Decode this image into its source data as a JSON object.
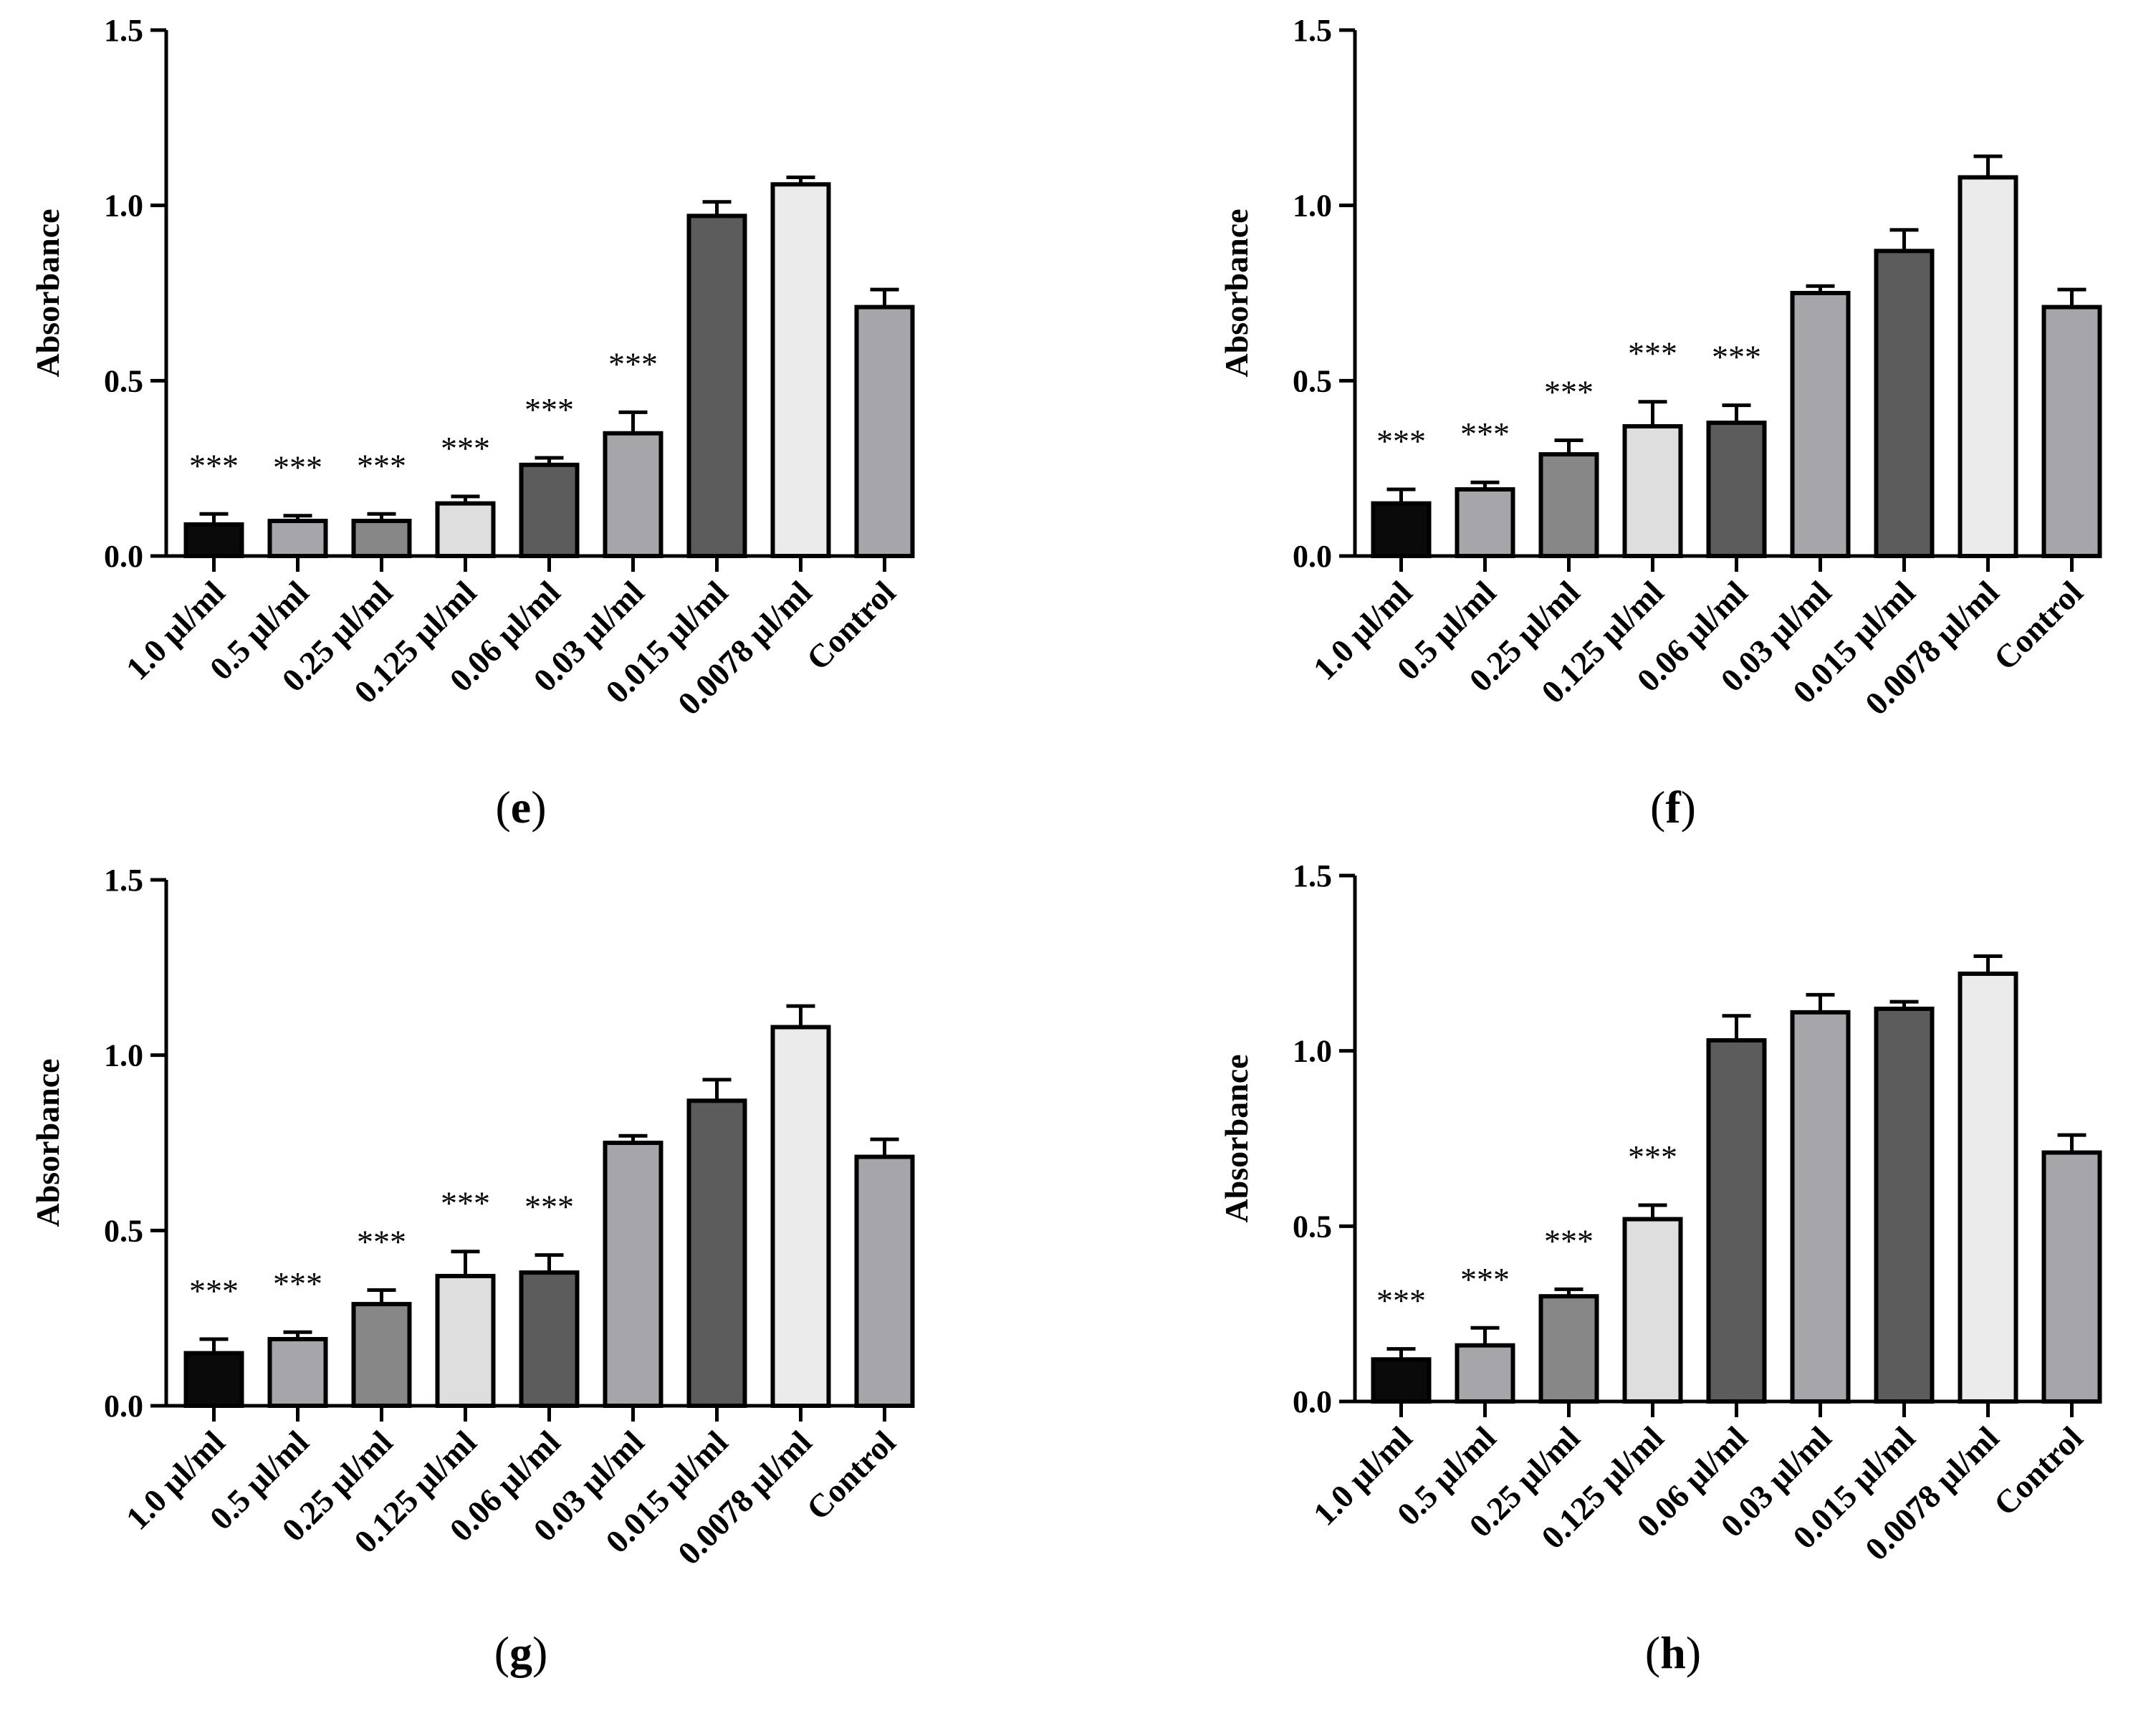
{
  "chart_data": [
    {
      "panel_label": "e",
      "type": "bar",
      "title": "",
      "xlabel": "",
      "ylabel": "Absorbance",
      "ylim": [
        0,
        1.5
      ],
      "yticks": [
        "0.0",
        "0.5",
        "1.0",
        "1.5"
      ],
      "categories": [
        "1.0 µl/ml",
        "0.5 µl/ml",
        "0.25 µl/ml",
        "0.125 µl/ml",
        "0.06 µl/ml",
        "0.03 µl/ml",
        "0.015 µl/ml",
        "0.0078 µl/ml",
        "Control"
      ],
      "values": [
        0.09,
        0.1,
        0.1,
        0.15,
        0.26,
        0.35,
        0.97,
        1.06,
        0.71
      ],
      "errors": [
        0.03,
        0.015,
        0.02,
        0.02,
        0.02,
        0.06,
        0.04,
        0.02,
        0.05
      ],
      "significance": [
        "***",
        "***",
        "***",
        "***",
        "***",
        "***",
        "",
        "",
        ""
      ],
      "bar_colors": [
        "#0a0a0a",
        "#a6a6aa",
        "#878787",
        "#dedede",
        "#5c5c5c",
        "#a6a6aa",
        "#5c5c5c",
        "#ebebeb",
        "#a6a6aa"
      ]
    },
    {
      "panel_label": "f",
      "type": "bar",
      "title": "",
      "xlabel": "",
      "ylabel": "Absorbance",
      "ylim": [
        0,
        1.5
      ],
      "yticks": [
        "0.0",
        "0.5",
        "1.0",
        "1.5"
      ],
      "categories": [
        "1.0 µl/ml",
        "0.5 µl/ml",
        "0.25 µl/ml",
        "0.125 µl/ml",
        "0.06 µl/ml",
        "0.03 µl/ml",
        "0.015 µl/ml",
        "0.0078 µl/ml",
        "Control"
      ],
      "values": [
        0.15,
        0.19,
        0.29,
        0.37,
        0.38,
        0.75,
        0.87,
        1.08,
        0.71
      ],
      "errors": [
        0.04,
        0.02,
        0.04,
        0.07,
        0.05,
        0.02,
        0.06,
        0.06,
        0.05
      ],
      "significance": [
        "***",
        "***",
        "***",
        "***",
        "***",
        "",
        "",
        "",
        ""
      ],
      "bar_colors": [
        "#0a0a0a",
        "#a6a6aa",
        "#878787",
        "#dedede",
        "#5c5c5c",
        "#a6a6aa",
        "#5c5c5c",
        "#ebebeb",
        "#a6a6aa"
      ]
    },
    {
      "panel_label": "g",
      "type": "bar",
      "title": "",
      "xlabel": "",
      "ylabel": "Absorbance",
      "ylim": [
        0,
        1.5
      ],
      "yticks": [
        "0.0",
        "0.5",
        "1.0",
        "1.5"
      ],
      "categories": [
        "1.0 µl/ml",
        "0.5 µl/ml",
        "0.25 µl/ml",
        "0.125 µl/ml",
        "0.06 µl/ml",
        "0.03 µl/ml",
        "0.015 µl/ml",
        "0.0078 µl/ml",
        "Control"
      ],
      "values": [
        0.15,
        0.19,
        0.29,
        0.37,
        0.38,
        0.75,
        0.87,
        1.08,
        0.71
      ],
      "errors": [
        0.04,
        0.02,
        0.04,
        0.07,
        0.05,
        0.02,
        0.06,
        0.06,
        0.05
      ],
      "significance": [
        "***",
        "***",
        "***",
        "***",
        "***",
        "",
        "",
        "",
        ""
      ],
      "bar_colors": [
        "#0a0a0a",
        "#a6a6aa",
        "#878787",
        "#dedede",
        "#5c5c5c",
        "#a6a6aa",
        "#5c5c5c",
        "#ebebeb",
        "#a6a6aa"
      ]
    },
    {
      "panel_label": "h",
      "type": "bar",
      "title": "",
      "xlabel": "",
      "ylabel": "Absorbance",
      "ylim": [
        0,
        1.5
      ],
      "yticks": [
        "0.0",
        "0.5",
        "1.0",
        "1.5"
      ],
      "categories": [
        "1.0 µl/ml",
        "0.5 µl/ml",
        "0.25 µl/ml",
        "0.125 µl/ml",
        "0.06 µl/ml",
        "0.03 µl/ml",
        "0.015 µl/ml",
        "0.0078 µl/ml",
        "Control"
      ],
      "values": [
        0.12,
        0.16,
        0.3,
        0.52,
        1.03,
        1.11,
        1.12,
        1.22,
        0.71
      ],
      "errors": [
        0.03,
        0.05,
        0.02,
        0.04,
        0.07,
        0.05,
        0.02,
        0.05,
        0.05
      ],
      "significance": [
        "***",
        "***",
        "***",
        "***",
        "",
        "",
        "",
        "",
        ""
      ],
      "bar_colors": [
        "#0a0a0a",
        "#a6a6aa",
        "#878787",
        "#dedede",
        "#5c5c5c",
        "#a6a6aa",
        "#5c5c5c",
        "#ebebeb",
        "#a6a6aa"
      ]
    }
  ]
}
